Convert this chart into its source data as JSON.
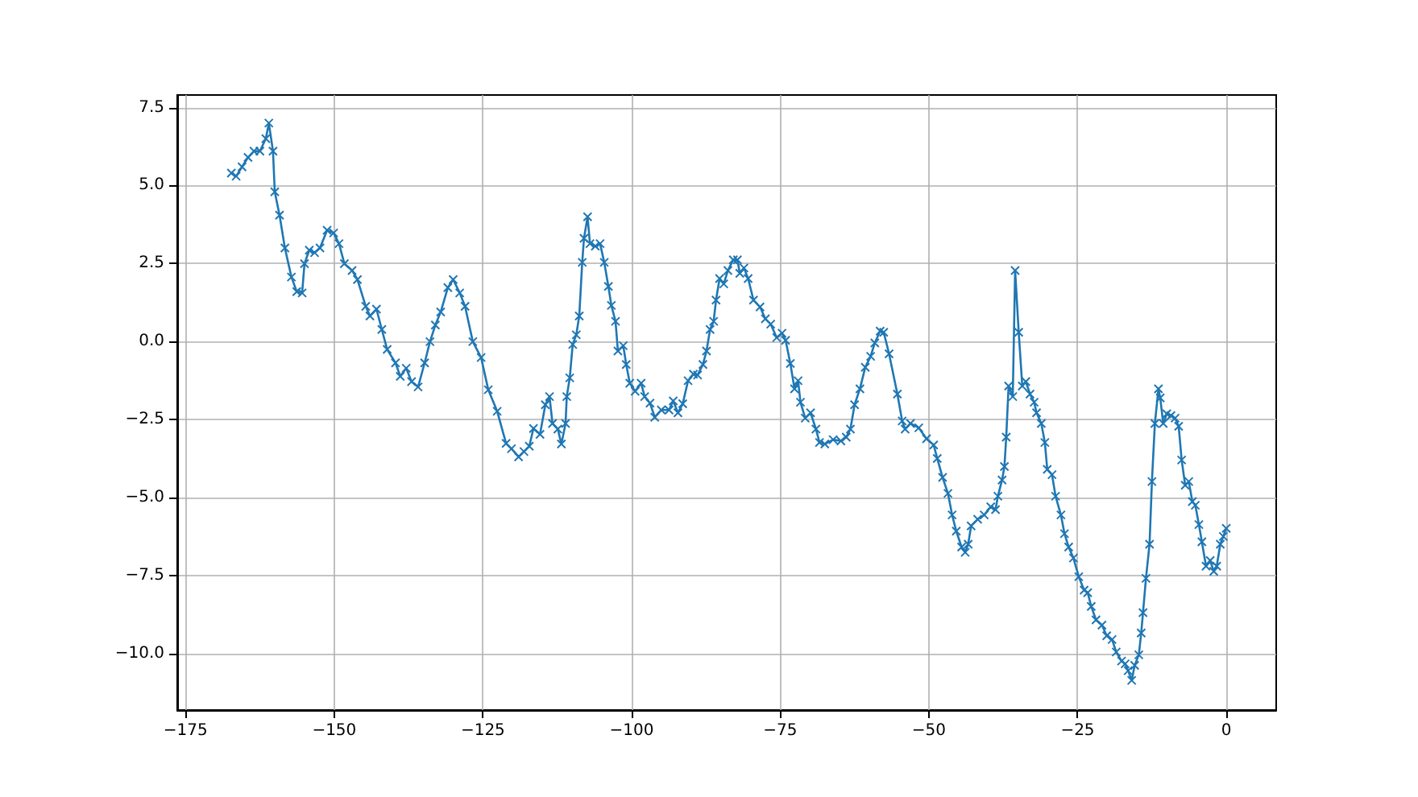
{
  "chart_data": {
    "type": "line",
    "marker": "cross",
    "line_style": "solid",
    "grid": true,
    "xlim": [
      -176.4,
      8.4
    ],
    "ylim": [
      -11.8,
      7.9
    ],
    "xticks": [
      {
        "value": -175,
        "label": "−175"
      },
      {
        "value": -150,
        "label": "−150"
      },
      {
        "value": -125,
        "label": "−125"
      },
      {
        "value": -100,
        "label": "−100"
      },
      {
        "value": -75,
        "label": "−75"
      },
      {
        "value": -50,
        "label": "−50"
      },
      {
        "value": -25,
        "label": "−25"
      },
      0
    ],
    "yticks": [
      {
        "value": -10,
        "label": "−10.0"
      },
      {
        "value": -7.5,
        "label": "−7.5"
      },
      {
        "value": -5,
        "label": "−5.0"
      },
      {
        "value": -2.5,
        "label": "−2.5"
      },
      {
        "value": 0,
        "label": "0.0"
      },
      2.5,
      {
        "value": 5,
        "label": "5.0"
      },
      7.5
    ],
    "series": [
      {
        "color": "#1f77b4",
        "x": [
          -167.3,
          -166.5,
          -165.5,
          -164.5,
          -163.5,
          -162.5,
          -161.5,
          -161,
          -160.3,
          -160,
          -159.2,
          -158.3,
          -157.2,
          -156.3,
          -155.4,
          -155,
          -154.2,
          -153.3,
          -152.4,
          -151.2,
          -150.1,
          -149.2,
          -148.3,
          -147,
          -146.1,
          -144.7,
          -144,
          -142.9,
          -142,
          -141.1,
          -139.7,
          -138.9,
          -137.9,
          -137,
          -135.9,
          -134.8,
          -133.9,
          -133,
          -132.1,
          -130.9,
          -130,
          -128.9,
          -128,
          -126.7,
          -125.3,
          -124.1,
          -122.6,
          -121.1,
          -120.2,
          -119,
          -118.1,
          -117.2,
          -116.5,
          -115.4,
          -114.5,
          -113.8,
          -113.3,
          -112.4,
          -111.8,
          -111.1,
          -110.9,
          -110.4,
          -109.9,
          -109.3,
          -108.8,
          -108.3,
          -108,
          -107.4,
          -107,
          -106.1,
          -105.3,
          -104.6,
          -103.9,
          -103.4,
          -102.7,
          -102.3,
          -101.4,
          -100.9,
          -100.3,
          -99.4,
          -98.4,
          -97.8,
          -96.9,
          -96.1,
          -95,
          -93.7,
          -93,
          -92.2,
          -91.4,
          -90.5,
          -89.6,
          -88.9,
          -88,
          -87.4,
          -86.8,
          -86.2,
          -85.8,
          -85.2,
          -84.5,
          -83.8,
          -82.9,
          -82.2,
          -81.8,
          -81.1,
          -80.4,
          -79.5,
          -78.4,
          -77.5,
          -76.6,
          -75.6,
          -74.7,
          -74.1,
          -73.3,
          -72.6,
          -72,
          -71.6,
          -70.8,
          -69.9,
          -69,
          -68.4,
          -67.5,
          -66.1,
          -64.8,
          -63.9,
          -63.2,
          -62.5,
          -61.6,
          -60.7,
          -59.8,
          -59.1,
          -58.2,
          -57.6,
          -56.7,
          -55.3,
          -54.5,
          -54,
          -53.1,
          -51.7,
          -50.4,
          -49.2,
          -48.6,
          -47.7,
          -46.8,
          -46.1,
          -45.4,
          -44.5,
          -43.9,
          -43.4,
          -42.9,
          -41.8,
          -40.7,
          -39.6,
          -38.8,
          -38.4,
          -37.7,
          -37.3,
          -37,
          -36.6,
          -35.9,
          -35.5,
          -34.9,
          -34.3,
          -33.7,
          -33,
          -32.3,
          -31.9,
          -31.1,
          -30.5,
          -30.1,
          -29.3,
          -28.7,
          -27.8,
          -27.2,
          -26.5,
          -25.7,
          -24.8,
          -23.9,
          -23.3,
          -22.7,
          -21.9,
          -20.9,
          -20.1,
          -19.2,
          -18.5,
          -17.6,
          -17,
          -16.5,
          -15.9,
          -15.4,
          -14.7,
          -14.3,
          -14,
          -13.5,
          -12.9,
          -12.5,
          -12,
          -11.4,
          -11.1,
          -10.6,
          -10,
          -9.3,
          -8.6,
          -8,
          -7.5,
          -6.9,
          -6.3,
          -5.7,
          -5.2,
          -4.6,
          -4.1,
          -3.4,
          -2.7,
          -2.1,
          -1.6,
          -1,
          -0.5,
          0
        ],
        "values": [
          5.4,
          5.3,
          5.6,
          5.9,
          6.1,
          6.1,
          6.5,
          7.0,
          6.1,
          4.8,
          4.05,
          3.0,
          2.07,
          1.6,
          1.56,
          2.5,
          2.93,
          2.85,
          3.0,
          3.57,
          3.48,
          3.14,
          2.5,
          2.28,
          1.99,
          1.13,
          0.82,
          1.04,
          0.39,
          -0.25,
          -0.68,
          -1.11,
          -0.85,
          -1.28,
          -1.45,
          -0.68,
          0.0,
          0.53,
          0.95,
          1.73,
          1.99,
          1.56,
          1.13,
          0.0,
          -0.51,
          -1.54,
          -2.23,
          -3.26,
          -3.43,
          -3.69,
          -3.52,
          -3.35,
          -2.78,
          -2.97,
          -2.02,
          -1.76,
          -2.62,
          -2.8,
          -3.28,
          -2.62,
          -1.76,
          -1.16,
          -0.09,
          0.22,
          0.82,
          2.54,
          3.31,
          4.0,
          3.14,
          3.06,
          3.14,
          2.54,
          1.77,
          1.16,
          0.65,
          -0.3,
          -0.13,
          -0.73,
          -1.33,
          -1.59,
          -1.33,
          -1.76,
          -1.97,
          -2.42,
          -2.19,
          -2.19,
          -1.9,
          -2.28,
          -1.99,
          -1.25,
          -1.04,
          -1.07,
          -0.73,
          -0.3,
          0.39,
          0.65,
          1.33,
          2.02,
          1.85,
          2.28,
          2.62,
          2.62,
          2.19,
          2.36,
          2.02,
          1.33,
          1.11,
          0.73,
          0.56,
          0.13,
          0.27,
          0.04,
          -0.7,
          -1.51,
          -1.25,
          -1.94,
          -2.45,
          -2.28,
          -2.8,
          -3.23,
          -3.28,
          -3.14,
          -3.18,
          -3.06,
          -2.8,
          -2.02,
          -1.51,
          -0.82,
          -0.47,
          -0.04,
          0.34,
          0.3,
          -0.39,
          -1.68,
          -2.54,
          -2.8,
          -2.62,
          -2.76,
          -3.11,
          -3.31,
          -3.74,
          -4.35,
          -4.86,
          -5.55,
          -6.07,
          -6.58,
          -6.75,
          -6.49,
          -5.9,
          -5.69,
          -5.55,
          -5.29,
          -5.38,
          -4.95,
          -4.43,
          -4.0,
          -3.06,
          -1.42,
          -1.76,
          2.28,
          0.3,
          -1.42,
          -1.28,
          -1.68,
          -1.94,
          -2.28,
          -2.62,
          -3.23,
          -4.09,
          -4.26,
          -4.95,
          -5.55,
          -6.15,
          -6.58,
          -6.93,
          -7.53,
          -7.96,
          -8.04,
          -8.48,
          -8.91,
          -9.08,
          -9.42,
          -9.54,
          -9.94,
          -10.23,
          -10.32,
          -10.54,
          -10.85,
          -10.37,
          -10.03,
          -9.33,
          -8.68,
          -7.58,
          -6.49,
          -4.48,
          -2.62,
          -1.51,
          -1.8,
          -2.62,
          -2.31,
          -2.37,
          -2.45,
          -2.71,
          -3.79,
          -4.6,
          -4.48,
          -5.12,
          -5.24,
          -5.86,
          -6.41,
          -7.19,
          -7.01,
          -7.36,
          -7.19,
          -6.49,
          -6.24,
          -5.98
        ]
      }
    ]
  }
}
